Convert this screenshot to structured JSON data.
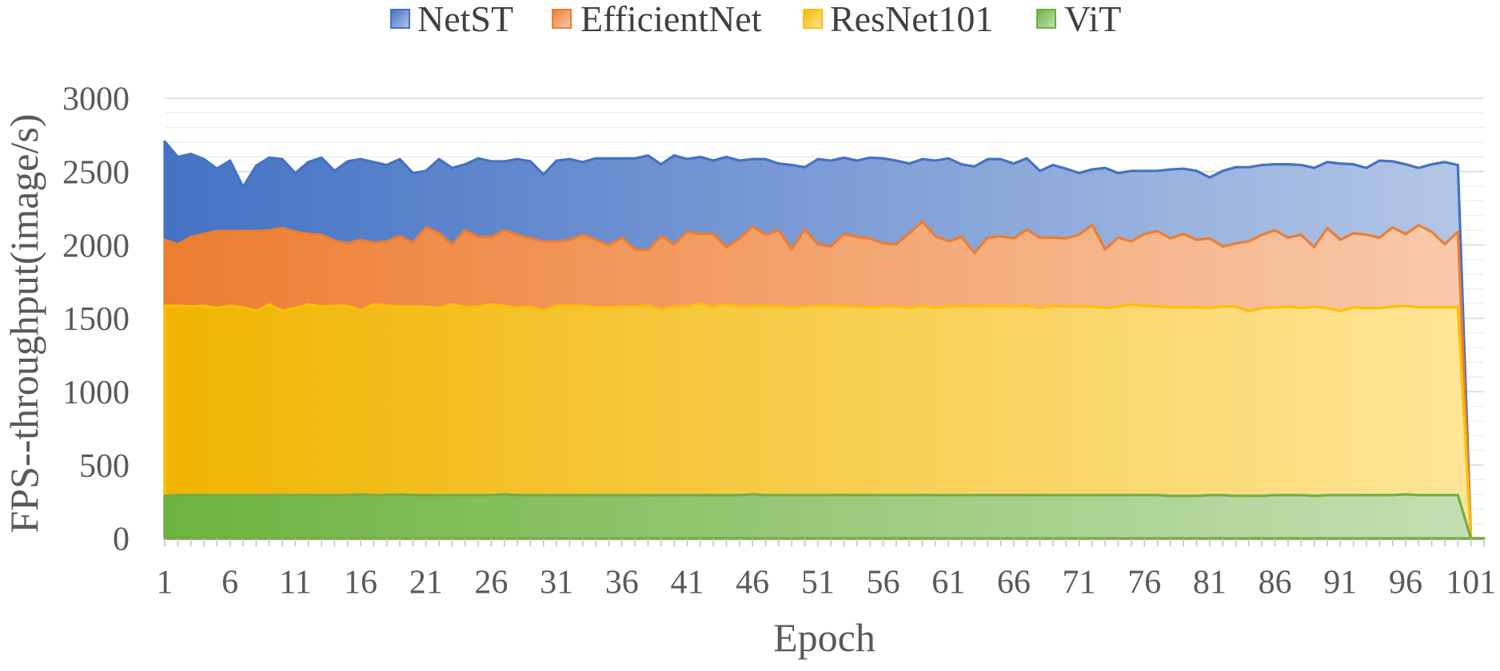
{
  "chart_data": {
    "type": "area",
    "xlabel": "Epoch",
    "ylabel": "FPS--throughput(image/s)",
    "ylim": [
      0,
      3000
    ],
    "yticks": [
      0,
      500,
      1000,
      1500,
      2000,
      2500,
      3000
    ],
    "minor_step": 100,
    "grid": true,
    "legend_position": "top",
    "x": [
      1,
      2,
      3,
      4,
      5,
      6,
      7,
      8,
      9,
      10,
      11,
      12,
      13,
      14,
      15,
      16,
      17,
      18,
      19,
      20,
      21,
      22,
      23,
      24,
      25,
      26,
      27,
      28,
      29,
      30,
      31,
      32,
      33,
      34,
      35,
      36,
      37,
      38,
      39,
      40,
      41,
      42,
      43,
      44,
      45,
      46,
      47,
      48,
      49,
      50,
      51,
      52,
      53,
      54,
      55,
      56,
      57,
      58,
      59,
      60,
      61,
      62,
      63,
      64,
      65,
      66,
      67,
      68,
      69,
      70,
      71,
      72,
      73,
      74,
      75,
      76,
      77,
      78,
      79,
      80,
      81,
      82,
      83,
      84,
      85,
      86,
      87,
      88,
      89,
      90,
      91,
      92,
      93,
      94,
      95,
      96,
      97,
      98,
      99,
      100,
      101,
      102
    ],
    "x_tick_labels": [
      "1",
      "6",
      "11",
      "16",
      "21",
      "26",
      "31",
      "36",
      "41",
      "46",
      "51",
      "56",
      "61",
      "66",
      "71",
      "76",
      "81",
      "86",
      "91",
      "96",
      "101"
    ],
    "series": [
      {
        "name": "NetST",
        "color": "#4472C4",
        "fill_start": "#4472C4",
        "fill_end": "#B4C7E7",
        "values": [
          2705,
          2600,
          2620,
          2585,
          2520,
          2575,
          2395,
          2540,
          2595,
          2585,
          2490,
          2565,
          2595,
          2505,
          2570,
          2585,
          2565,
          2545,
          2585,
          2490,
          2505,
          2585,
          2525,
          2550,
          2590,
          2570,
          2570,
          2585,
          2570,
          2480,
          2575,
          2585,
          2565,
          2590,
          2590,
          2590,
          2590,
          2610,
          2550,
          2610,
          2585,
          2600,
          2575,
          2600,
          2575,
          2585,
          2585,
          2555,
          2545,
          2530,
          2585,
          2575,
          2595,
          2575,
          2595,
          2590,
          2575,
          2555,
          2585,
          2575,
          2590,
          2550,
          2535,
          2585,
          2585,
          2555,
          2590,
          2505,
          2545,
          2520,
          2490,
          2515,
          2525,
          2490,
          2505,
          2505,
          2505,
          2515,
          2520,
          2505,
          2460,
          2505,
          2530,
          2530,
          2545,
          2550,
          2550,
          2545,
          2525,
          2565,
          2555,
          2550,
          2525,
          2575,
          2570,
          2550,
          2525,
          2550,
          2565,
          2545,
          0,
          0
        ]
      },
      {
        "name": "EfficientNet",
        "color": "#ED7D31",
        "fill_start": "#ED7D31",
        "fill_end": "#F8CBAD",
        "values": [
          2035,
          2005,
          2055,
          2075,
          2095,
          2095,
          2095,
          2095,
          2100,
          2115,
          2090,
          2075,
          2070,
          2030,
          2010,
          2035,
          2015,
          2025,
          2060,
          2015,
          2120,
          2080,
          2005,
          2100,
          2055,
          2055,
          2100,
          2070,
          2045,
          2025,
          2025,
          2035,
          2070,
          2035,
          2000,
          2050,
          1970,
          1965,
          2060,
          2005,
          2090,
          2075,
          2075,
          1985,
          2045,
          2125,
          2070,
          2100,
          1970,
          2105,
          2005,
          1990,
          2075,
          2055,
          2045,
          2010,
          2005,
          2080,
          2160,
          2060,
          2025,
          2055,
          1945,
          2050,
          2060,
          2045,
          2105,
          2050,
          2050,
          2045,
          2070,
          2135,
          1970,
          2050,
          2025,
          2075,
          2095,
          2045,
          2075,
          2035,
          2045,
          1990,
          2010,
          2025,
          2070,
          2100,
          2050,
          2070,
          1985,
          2115,
          2035,
          2080,
          2070,
          2050,
          2120,
          2075,
          2135,
          2090,
          2005,
          2090,
          0,
          0
        ]
      },
      {
        "name": "ResNet101",
        "color": "#FFC000",
        "fill_start": "#F0B400",
        "fill_end": "#FFE699",
        "values": [
          1585,
          1585,
          1580,
          1585,
          1570,
          1585,
          1575,
          1550,
          1595,
          1550,
          1570,
          1595,
          1580,
          1585,
          1585,
          1555,
          1595,
          1585,
          1580,
          1580,
          1580,
          1570,
          1595,
          1575,
          1580,
          1595,
          1585,
          1570,
          1580,
          1550,
          1585,
          1585,
          1585,
          1575,
          1575,
          1580,
          1580,
          1585,
          1560,
          1580,
          1580,
          1600,
          1575,
          1595,
          1580,
          1580,
          1585,
          1580,
          1570,
          1580,
          1585,
          1585,
          1580,
          1580,
          1575,
          1580,
          1580,
          1570,
          1585,
          1570,
          1580,
          1585,
          1580,
          1585,
          1585,
          1580,
          1585,
          1570,
          1585,
          1580,
          1580,
          1580,
          1570,
          1580,
          1595,
          1585,
          1580,
          1575,
          1575,
          1575,
          1570,
          1580,
          1580,
          1550,
          1570,
          1575,
          1580,
          1570,
          1580,
          1570,
          1550,
          1575,
          1570,
          1570,
          1580,
          1585,
          1575,
          1575,
          1575,
          1575,
          0,
          0
        ]
      },
      {
        "name": "ViT",
        "color": "#70AD47",
        "fill_start": "#6DB33F",
        "fill_end": "#C5E0B4",
        "values": [
          290,
          295,
          295,
          295,
          295,
          295,
          295,
          295,
          295,
          295,
          295,
          295,
          295,
          295,
          295,
          300,
          295,
          295,
          300,
          295,
          295,
          295,
          295,
          295,
          295,
          295,
          300,
          295,
          295,
          295,
          295,
          295,
          295,
          295,
          295,
          295,
          295,
          295,
          295,
          295,
          295,
          295,
          295,
          295,
          295,
          300,
          295,
          295,
          295,
          295,
          295,
          295,
          295,
          295,
          295,
          295,
          295,
          295,
          295,
          295,
          295,
          295,
          295,
          295,
          295,
          295,
          295,
          295,
          295,
          295,
          295,
          295,
          295,
          295,
          295,
          295,
          295,
          290,
          290,
          290,
          295,
          295,
          290,
          290,
          290,
          295,
          295,
          295,
          290,
          295,
          295,
          295,
          295,
          295,
          295,
          300,
          295,
          295,
          295,
          295,
          0,
          0
        ]
      }
    ]
  }
}
